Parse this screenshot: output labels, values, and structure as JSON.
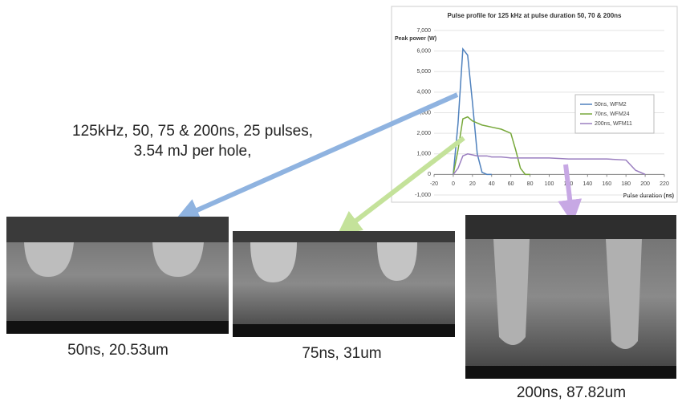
{
  "chart_data": {
    "type": "line",
    "title": "Pulse profile for 125 kHz at pulse duration 50, 70 & 200ns",
    "ylabel": "Peak power (W)",
    "xlabel": "Pulse duration (ns)",
    "x": [
      0,
      5,
      10,
      15,
      20,
      25,
      30,
      35,
      40,
      50,
      60,
      65,
      70,
      75,
      80,
      100,
      120,
      140,
      160,
      180,
      190,
      200
    ],
    "series": [
      {
        "name": "50ns, WFM2",
        "color": "#4f81bd",
        "values": [
          0,
          2500,
          6100,
          5800,
          3500,
          1000,
          100,
          0,
          0,
          null,
          null,
          null,
          null,
          null,
          null,
          null,
          null,
          null,
          null,
          null,
          null,
          null
        ]
      },
      {
        "name": "70ns, WFM24",
        "color": "#77a83a",
        "values": [
          0,
          1200,
          2700,
          2800,
          2600,
          2500,
          2400,
          2350,
          2300,
          2200,
          2000,
          1200,
          300,
          0,
          0,
          null,
          null,
          null,
          null,
          null,
          null,
          null
        ]
      },
      {
        "name": "200ns, WFM11",
        "color": "#9b7fc0",
        "values": [
          0,
          300,
          900,
          1000,
          950,
          900,
          900,
          900,
          850,
          850,
          800,
          800,
          800,
          800,
          800,
          800,
          750,
          750,
          750,
          700,
          200,
          0
        ]
      }
    ],
    "xlim": [
      -20,
      220
    ],
    "xticks": [
      -20,
      0,
      20,
      40,
      60,
      80,
      100,
      120,
      140,
      160,
      180,
      200,
      220
    ],
    "ylim": [
      -1000,
      7000
    ],
    "yticks": [
      {
        "value": -1000,
        "label": "-1,000"
      },
      0,
      {
        "value": 1000,
        "label": "1,000"
      },
      {
        "value": 2000,
        "label": "2,000"
      },
      {
        "value": 3000,
        "label": "3,000"
      },
      {
        "value": 4000,
        "label": "4,000"
      },
      {
        "value": 5000,
        "label": "5,000"
      },
      {
        "value": 6000,
        "label": "6,000"
      },
      {
        "value": 7000,
        "label": "7,000"
      }
    ],
    "grid": true
  },
  "annotation": [
    "125kHz, 50, 75 & 200ns, 25 pulses,",
    "3.54 mJ per hole,"
  ],
  "images": [
    {
      "caption": "50ns, 20.53um"
    },
    {
      "caption": "75ns, 31um"
    },
    {
      "caption": "200ns, 87.82um"
    }
  ]
}
